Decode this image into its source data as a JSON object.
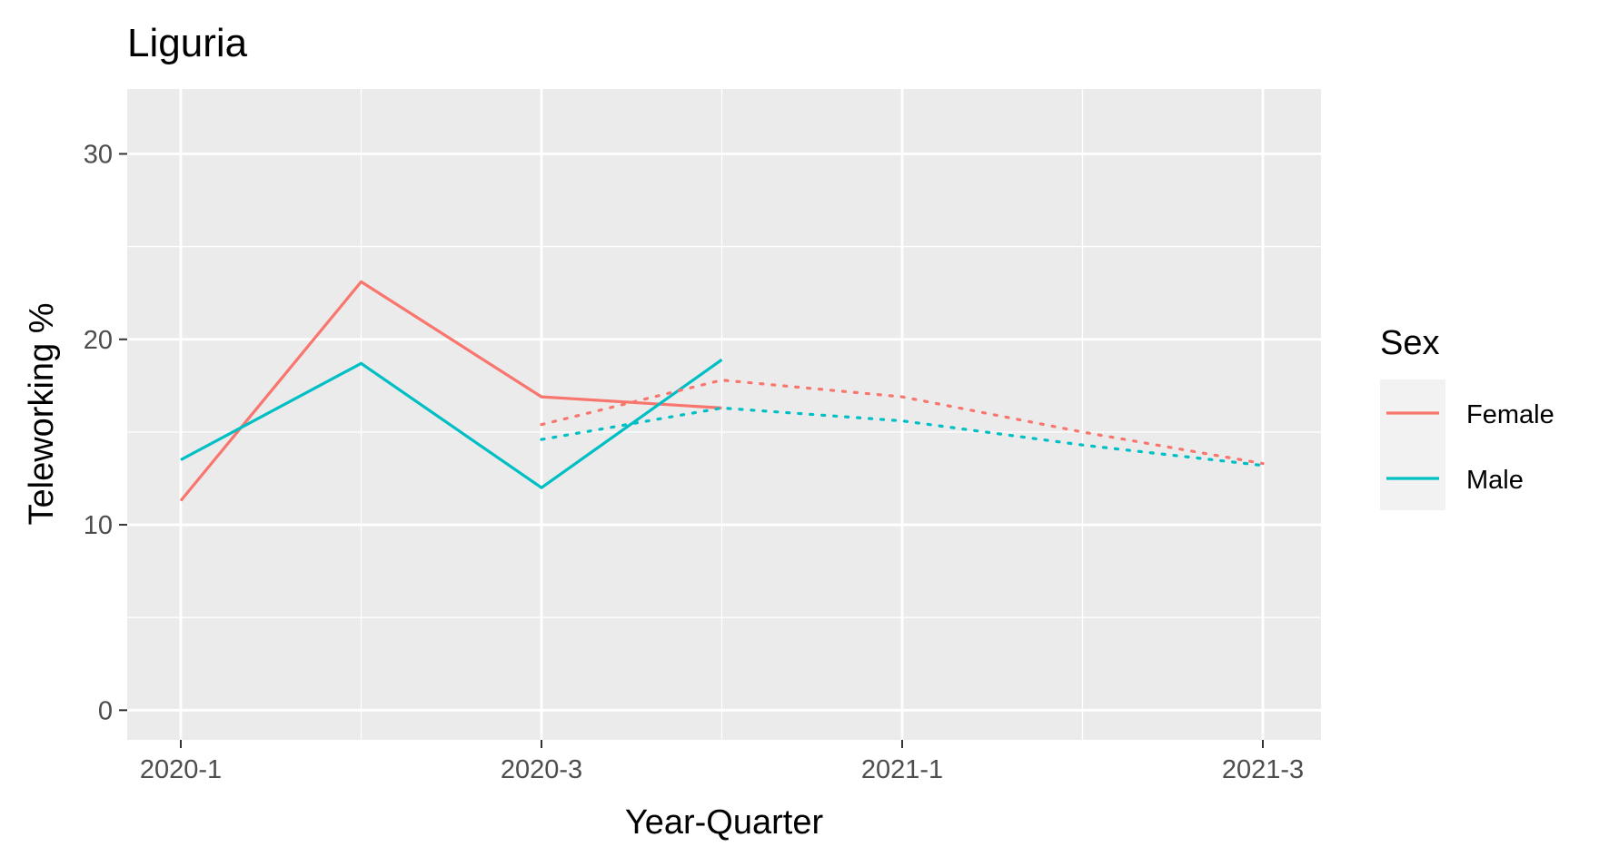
{
  "chart_data": {
    "type": "line",
    "title": "Liguria",
    "xlabel": "Year-Quarter",
    "ylabel": "Teleworking %",
    "x_categories": [
      "2020-1",
      "2020-2",
      "2020-3",
      "2020-4",
      "2021-1",
      "2021-2",
      "2021-3"
    ],
    "x_tick_labels": [
      "2020-1",
      "2020-3",
      "2021-1",
      "2021-3"
    ],
    "y_ticks": [
      0,
      10,
      20,
      30
    ],
    "ylim": [
      -1.6,
      33.5
    ],
    "grid": true,
    "legend": {
      "title": "Sex",
      "position": "right",
      "entries": [
        "Female",
        "Male"
      ]
    },
    "series": [
      {
        "name": "Female",
        "color": "#F8766D",
        "linestyle": "solid",
        "points": [
          {
            "x": "2020-1",
            "y": 11.3
          },
          {
            "x": "2020-2",
            "y": 23.1
          },
          {
            "x": "2020-3",
            "y": 16.9
          },
          {
            "x": "2020-4",
            "y": 16.3
          }
        ]
      },
      {
        "name": "Male",
        "color": "#00BFC4",
        "linestyle": "solid",
        "points": [
          {
            "x": "2020-1",
            "y": 13.5
          },
          {
            "x": "2020-2",
            "y": 18.7
          },
          {
            "x": "2020-3",
            "y": 12.0
          },
          {
            "x": "2020-4",
            "y": 18.9
          }
        ]
      },
      {
        "name": "Female",
        "color": "#F8766D",
        "linestyle": "dotted",
        "points": [
          {
            "x": "2020-3",
            "y": 15.4
          },
          {
            "x": "2020-4",
            "y": 17.8
          },
          {
            "x": "2021-1",
            "y": 16.9
          },
          {
            "x": "2021-2",
            "y": 15.0
          },
          {
            "x": "2021-3",
            "y": 13.3
          }
        ]
      },
      {
        "name": "Male",
        "color": "#00BFC4",
        "linestyle": "dotted",
        "points": [
          {
            "x": "2020-3",
            "y": 14.6
          },
          {
            "x": "2020-4",
            "y": 16.3
          },
          {
            "x": "2021-1",
            "y": 15.6
          },
          {
            "x": "2021-2",
            "y": 14.3
          },
          {
            "x": "2021-3",
            "y": 13.2
          }
        ]
      }
    ]
  }
}
